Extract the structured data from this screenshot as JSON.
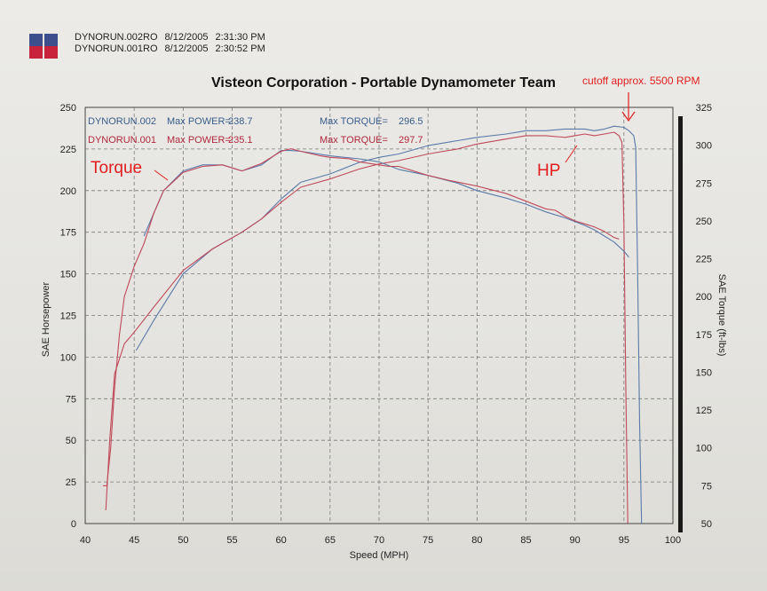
{
  "header": {
    "runs": [
      {
        "name": "DYNORUN.002RO",
        "date": "8/12/2005",
        "time": "2:31:30 PM",
        "color": "#3c4f8c"
      },
      {
        "name": "DYNORUN.001RO",
        "date": "8/12/2005",
        "time": "2:30:52 PM",
        "color": "#c8233a"
      }
    ]
  },
  "chart_data": {
    "type": "line",
    "title": "Visteon Corporation - Portable Dynamometer Team",
    "xlabel": "Speed (MPH)",
    "ylabel": "SAE Horsepower",
    "y2label": "SAE Torque (ft-lbs)",
    "xlim": [
      40,
      100
    ],
    "ylim": [
      0,
      250
    ],
    "y2lim": [
      50,
      325
    ],
    "xticks": [
      "40",
      "45",
      "50",
      "55",
      "60",
      "65",
      "70",
      "75",
      "80",
      "85",
      "90",
      "95",
      "100"
    ],
    "yticks": [
      "0",
      "25",
      "50",
      "75",
      "100",
      "125",
      "150",
      "175",
      "200",
      "225",
      "250"
    ],
    "y2ticks": [
      "50",
      "75",
      "100",
      "125",
      "150",
      "175",
      "200",
      "225",
      "250",
      "275",
      "300",
      "325"
    ],
    "grid": true,
    "stats": [
      {
        "run": "DYNORUN.002",
        "power_label": "Max POWER=",
        "power": "238.7",
        "torque_label": "Max TORQUE=",
        "torque": "296.5",
        "color": "#3a5c8c"
      },
      {
        "run": "DYNORUN.001",
        "power_label": "Max POWER=",
        "power": "235.1",
        "torque_label": "Max TORQUE=",
        "torque": "297.7",
        "color": "#b0283c"
      }
    ],
    "annotations": {
      "torque": "Torque",
      "hp": "HP",
      "cutoff": "cutoff approx. 5500 RPM"
    },
    "series": [
      {
        "name": "DYNORUN.002 HP",
        "color": "#5a7aa8",
        "axis": "left",
        "x": [
          45.2,
          47,
          50,
          53,
          56,
          58,
          60,
          62,
          65,
          68,
          70,
          72,
          75,
          78,
          80,
          83,
          85,
          87,
          89,
          91,
          92,
          93,
          94,
          95,
          95.5,
          96,
          96.2,
          96.4,
          96.6,
          96.8
        ],
        "y": [
          104,
          122,
          150,
          165,
          175,
          183,
          195,
          205,
          210,
          217,
          220,
          222,
          227,
          230,
          232,
          234,
          236,
          236,
          237,
          237,
          236,
          237,
          238.7,
          238,
          236,
          233,
          226,
          150,
          60,
          0
        ]
      },
      {
        "name": "DYNORUN.001 HP",
        "color": "#c04a5a",
        "axis": "left",
        "x": [
          42.1,
          42.5,
          43,
          44,
          45,
          47,
          50,
          53,
          56,
          58,
          60,
          62,
          65,
          68,
          70,
          72,
          75,
          78,
          80,
          83,
          85,
          87,
          89,
          90,
          91,
          92,
          93,
          94,
          94.5,
          94.8,
          95,
          95.2,
          95.4
        ],
        "y": [
          8,
          50,
          90,
          108,
          115,
          130,
          152,
          165,
          175,
          183,
          193,
          202,
          207,
          213,
          216,
          218,
          222,
          225,
          228,
          231,
          233,
          233,
          232,
          233,
          234,
          233,
          234,
          235.1,
          233,
          229,
          180,
          80,
          0
        ]
      },
      {
        "name": "DYNORUN.002 Torque",
        "color": "#5a7aa8",
        "axis": "right",
        "x": [
          46,
          47,
          48,
          50,
          52,
          54,
          56,
          58,
          60,
          61,
          62,
          65,
          68,
          70,
          72,
          75,
          78,
          80,
          83,
          85,
          87,
          89,
          91,
          92,
          93,
          94,
          95,
          95.5
        ],
        "y": [
          240,
          255,
          270,
          283,
          287,
          287,
          283,
          287,
          296.5,
          296.5,
          296,
          293,
          291,
          289,
          284,
          280,
          275,
          270,
          265,
          261,
          256,
          252,
          247,
          244,
          240,
          236,
          230,
          226
        ]
      },
      {
        "name": "DYNORUN.001 Torque",
        "color": "#c04a5a",
        "axis": "right",
        "x": [
          41.8,
          42.2,
          42.6,
          43,
          43.5,
          44,
          45,
          46,
          47,
          48,
          50,
          52,
          54,
          56,
          58,
          60,
          61,
          62,
          64,
          65,
          67,
          68,
          70,
          71,
          72,
          74,
          75,
          77,
          80,
          83,
          85,
          87,
          88,
          89,
          90,
          91,
          92,
          93,
          93.5,
          94,
          94.5
        ],
        "y": [
          75,
          75,
          100,
          140,
          175,
          200,
          220,
          235,
          255,
          270,
          282,
          286,
          287,
          283,
          288,
          296,
          297.7,
          296,
          293,
          292,
          291,
          289,
          287,
          286,
          286,
          282,
          280,
          277,
          273,
          268,
          263,
          258,
          257,
          253,
          250,
          248,
          246,
          243,
          241,
          239,
          238
        ]
      }
    ]
  }
}
